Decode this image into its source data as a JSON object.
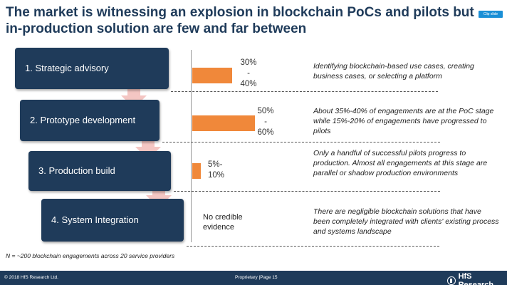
{
  "title": "The market is witnessing an explosion in blockchain PoCs and pilots but in-production solution are few and far between",
  "clip_badge": "Clip slide",
  "steps": [
    {
      "label": "1. Strategic advisory"
    },
    {
      "label": "2. Prototype development"
    },
    {
      "label": "3. Production build"
    },
    {
      "label": "4. System Integration"
    }
  ],
  "descriptions": [
    "Identifying blockchain-based use cases, creating business cases, or selecting a platform",
    "About 35%-40% of engagements are at the PoC stage while 15%-20% of engagements have progressed to pilots",
    "Only a handful of successful pilots progress to production. Almost all engagements at this stage are parallel or shadow production environments",
    "There are negligible blockchain solutions that have been completely integrated with clients' existing process and systems landscape"
  ],
  "no_evidence": "No credible evidence",
  "footnote": "N = ~200 blockchain engagements across 20 service providers",
  "footer": {
    "copyright": "© 2018 HfS Research Ltd.",
    "proprietary": "Proprietary |Page 15",
    "logo": "HfS Research"
  },
  "colors": {
    "navy": "#1f3b5a",
    "bar": "#f0883a",
    "arrow": "#f4c6c3"
  },
  "chart_data": {
    "type": "bar",
    "orientation": "horizontal",
    "categories": [
      "1. Strategic advisory",
      "2. Prototype development",
      "3. Production build",
      "4. System Integration"
    ],
    "range_low": [
      30,
      50,
      5,
      null
    ],
    "range_high": [
      40,
      60,
      10,
      null
    ],
    "values": [
      35,
      55,
      7.5,
      null
    ],
    "labels": [
      [
        "30%",
        "-",
        "40%"
      ],
      [
        "50%",
        "-",
        "60%"
      ],
      [
        "5%-",
        "10%"
      ],
      []
    ],
    "xlim": [
      0,
      100
    ],
    "grid": false
  }
}
